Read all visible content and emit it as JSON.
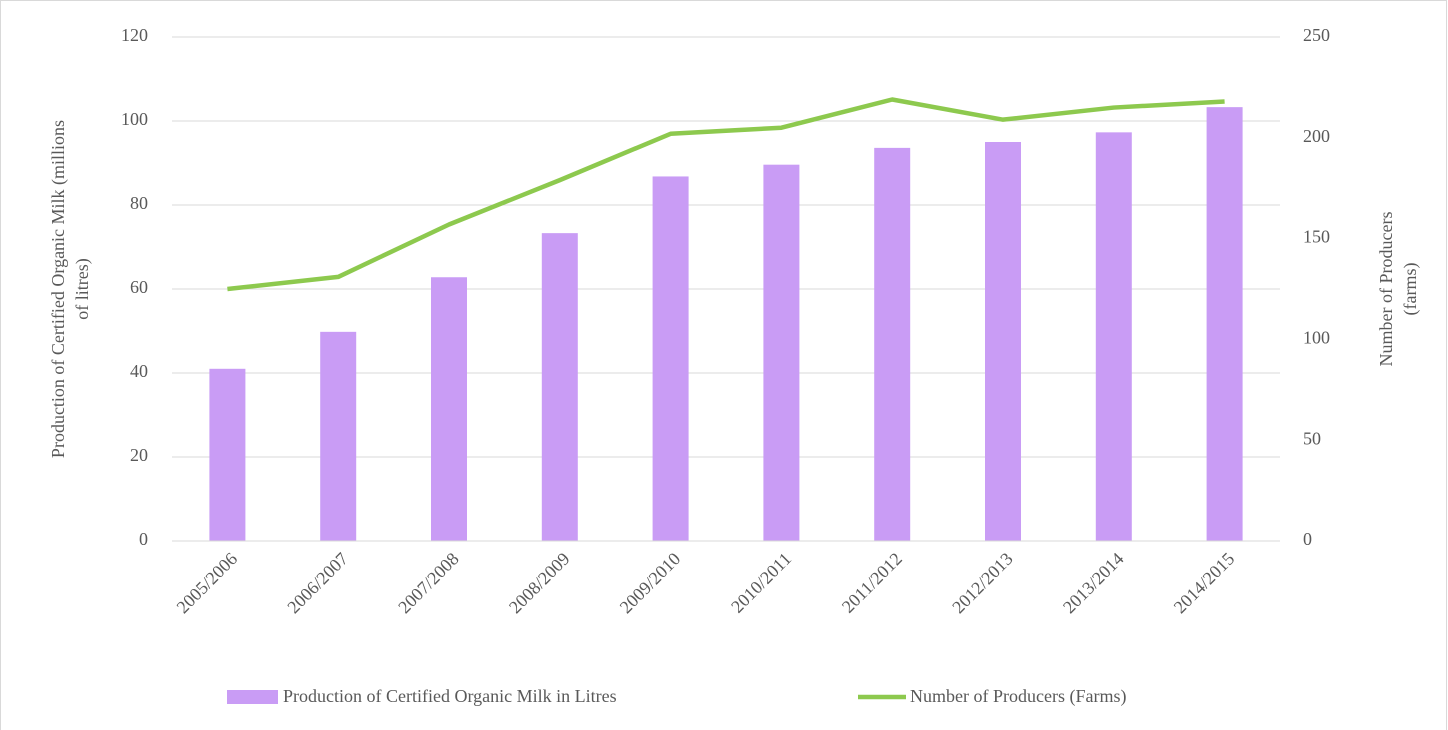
{
  "chart_data": {
    "type": "bar_line",
    "y_label": [
      "Production of Certified Organic Milk (millions",
      "of litres)"
    ],
    "y2_label": [
      "Number of Producers",
      "(farms)"
    ],
    "categories": [
      "2005/2006",
      "2006/2007",
      "2007/2008",
      "2008/2009",
      "2009/2010",
      "2010/2011",
      "2011/2012",
      "2012/2013",
      "2013/2014",
      "2014/2015"
    ],
    "series": [
      {
        "name": "Production of Certified Organic Milk in Litres",
        "type": "bar",
        "color": "#c99cf5",
        "values": [
          41,
          49.8,
          62.8,
          73.3,
          86.8,
          89.6,
          93.6,
          95,
          97.3,
          103.3
        ]
      },
      {
        "name": "Number of Producers (Farms)",
        "type": "line",
        "axis": "y2",
        "color": "#8dc94e",
        "values": [
          125,
          131,
          157,
          179,
          202,
          205,
          219,
          209,
          215,
          218
        ]
      }
    ],
    "ylim": [
      0,
      120
    ],
    "yticks": [
      0,
      20,
      40,
      60,
      80,
      100,
      120
    ],
    "y2lim": [
      0,
      250
    ],
    "y2ticks": [
      0,
      50,
      100,
      150,
      200,
      250
    ],
    "grid": true,
    "legend": "bottom"
  }
}
